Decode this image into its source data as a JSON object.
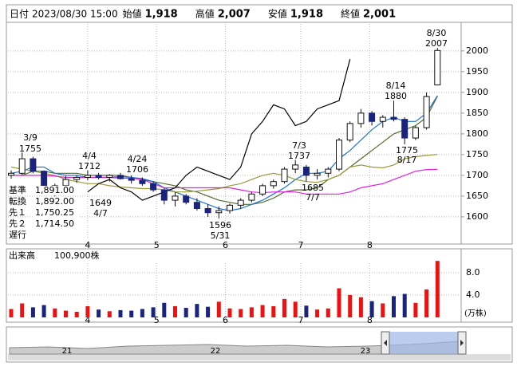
{
  "header": {
    "items": [
      {
        "label": "日付",
        "value": "2023/08/30 15:00"
      },
      {
        "label": "始値",
        "value": "1,918"
      },
      {
        "label": "高値",
        "value": "2,007"
      },
      {
        "label": "安値",
        "value": "1,918"
      },
      {
        "label": "終値",
        "value": "2,001"
      }
    ]
  },
  "chart_data": [
    {
      "type": "candlestick",
      "candles": [
        [
          1700,
          1712,
          1692,
          1705
        ],
        [
          1705,
          1755,
          1700,
          1740
        ],
        [
          1740,
          1745,
          1705,
          1710
        ],
        [
          1710,
          1712,
          1660,
          1670
        ],
        [
          1668,
          1680,
          1649,
          1675
        ],
        [
          1675,
          1698,
          1670,
          1690
        ],
        [
          1690,
          1700,
          1682,
          1695
        ],
        [
          1695,
          1712,
          1688,
          1700
        ],
        [
          1700,
          1706,
          1690,
          1695
        ],
        [
          1695,
          1703,
          1685,
          1700
        ],
        [
          1700,
          1706,
          1690,
          1692
        ],
        [
          1692,
          1700,
          1680,
          1688
        ],
        [
          1688,
          1695,
          1675,
          1680
        ],
        [
          1680,
          1685,
          1660,
          1665
        ],
        [
          1665,
          1670,
          1630,
          1640
        ],
        [
          1640,
          1660,
          1625,
          1650
        ],
        [
          1650,
          1655,
          1630,
          1635
        ],
        [
          1635,
          1645,
          1615,
          1620
        ],
        [
          1620,
          1630,
          1600,
          1610
        ],
        [
          1610,
          1625,
          1596,
          1615
        ],
        [
          1615,
          1632,
          1608,
          1628
        ],
        [
          1628,
          1645,
          1620,
          1640
        ],
        [
          1640,
          1660,
          1635,
          1655
        ],
        [
          1655,
          1680,
          1650,
          1675
        ],
        [
          1675,
          1690,
          1668,
          1685
        ],
        [
          1685,
          1720,
          1680,
          1715
        ],
        [
          1715,
          1737,
          1705,
          1725
        ],
        [
          1720,
          1725,
          1685,
          1700
        ],
        [
          1700,
          1715,
          1690,
          1705
        ],
        [
          1705,
          1720,
          1695,
          1715
        ],
        [
          1715,
          1790,
          1710,
          1785
        ],
        [
          1785,
          1830,
          1780,
          1825
        ],
        [
          1825,
          1860,
          1815,
          1850
        ],
        [
          1850,
          1855,
          1820,
          1830
        ],
        [
          1830,
          1845,
          1815,
          1840
        ],
        [
          1840,
          1880,
          1830,
          1835
        ],
        [
          1835,
          1840,
          1775,
          1790
        ],
        [
          1790,
          1820,
          1785,
          1815
        ],
        [
          1815,
          1900,
          1810,
          1890
        ],
        [
          1918,
          2007,
          1918,
          2001
        ]
      ],
      "up_color": "#ffffff",
      "down_color": "#1a237e",
      "series": [
        {
          "name": "基準",
          "color": "#4f6b2a",
          "value_label": "1,891.00",
          "values": [
            1700,
            1700,
            1710,
            1710,
            1705,
            1705,
            1705,
            1700,
            1700,
            1700,
            1700,
            1695,
            1690,
            1685,
            1680,
            1675,
            1665,
            1660,
            1650,
            1640,
            1635,
            1630,
            1630,
            1635,
            1645,
            1660,
            1665,
            1665,
            1670,
            1690,
            1700,
            1720,
            1740,
            1760,
            1780,
            1800,
            1810,
            1820,
            1840,
            1891
          ]
        },
        {
          "name": "転換",
          "color": "#1e73d2",
          "value_label": "1,892.00",
          "values": [
            1705,
            1710,
            1720,
            1720,
            1705,
            1700,
            1700,
            1695,
            1695,
            1695,
            1697,
            1695,
            1692,
            1685,
            1670,
            1660,
            1650,
            1640,
            1630,
            1620,
            1615,
            1620,
            1630,
            1640,
            1655,
            1670,
            1690,
            1705,
            1705,
            1710,
            1740,
            1760,
            1785,
            1810,
            1830,
            1840,
            1830,
            1830,
            1850,
            1892
          ]
        },
        {
          "name": "先１",
          "color": "#9a9a3a",
          "value_label": "1,750.25",
          "values": [
            1720,
            1715,
            1710,
            1705,
            1700,
            1690,
            1685,
            1680,
            1680,
            1675,
            1672,
            1670,
            1668,
            1668,
            1665,
            1660,
            1660,
            1662,
            1665,
            1668,
            1675,
            1680,
            1690,
            1700,
            1705,
            1700,
            1690,
            1685,
            1683,
            1690,
            1700,
            1720,
            1725,
            1720,
            1718,
            1725,
            1740,
            1745,
            1748,
            1750.25
          ]
        },
        {
          "name": "先２",
          "color": "#e020e0",
          "value_label": "1,714.50",
          "values": [
            1700,
            1700,
            1700,
            1700,
            1698,
            1695,
            1695,
            1695,
            1695,
            1695,
            1693,
            1693,
            1690,
            1680,
            1670,
            1670,
            1670,
            1670,
            1670,
            1670,
            1670,
            1665,
            1660,
            1658,
            1660,
            1660,
            1660,
            1655,
            1655,
            1655,
            1655,
            1660,
            1670,
            1675,
            1680,
            1690,
            1700,
            1710,
            1714,
            1714.5
          ]
        },
        {
          "name": "遅行",
          "color": "#000000",
          "values": [
            null,
            null,
            null,
            null,
            null,
            null,
            null,
            1660,
            1680,
            1690,
            1670,
            1660,
            1640,
            1650,
            1660,
            1670,
            1700,
            1720,
            1710,
            1700,
            1690,
            1720,
            1800,
            1830,
            1870,
            1860,
            1820,
            1830,
            1860,
            1870,
            1880,
            1980,
            null,
            null,
            null,
            null,
            null,
            null,
            null,
            null
          ]
        }
      ],
      "ylim": [
        1546,
        2065
      ],
      "yticks": [
        1600,
        1650,
        1700,
        1750,
        1800,
        1850,
        1900,
        1950,
        2000
      ],
      "xticks": [
        {
          "value": 7,
          "label": "4"
        },
        {
          "value": 13.3,
          "label": "5"
        },
        {
          "value": 19.6,
          "label": "6"
        },
        {
          "value": 26.5,
          "label": "7"
        },
        {
          "value": 32.8,
          "label": "8"
        }
      ],
      "grid": true,
      "annotations": [
        {
          "date": "3/9",
          "price": "1755"
        },
        {
          "date": "4/4",
          "price": "1712"
        },
        {
          "date": "4/24",
          "price": "1706"
        },
        {
          "date": "4/7",
          "price": "1649"
        },
        {
          "date": "5/31",
          "price": "1596"
        },
        {
          "date": "7/3",
          "price": "1737"
        },
        {
          "date": "7/7",
          "price": "1685"
        },
        {
          "date": "8/14",
          "price": "1880"
        },
        {
          "date": "8/17",
          "price": "1775"
        },
        {
          "date": "8/30",
          "price": "2007"
        }
      ]
    },
    {
      "type": "bar",
      "title": "出来高",
      "title_value": "100,900株",
      "unit": "(万株)",
      "values": [
        1.5,
        2.5,
        1.8,
        2.2,
        1.6,
        1.2,
        1.0,
        2.0,
        1.4,
        1.1,
        1.3,
        1.2,
        1.5,
        1.8,
        2.6,
        2.0,
        1.7,
        2.4,
        1.9,
        2.8,
        1.6,
        1.5,
        1.8,
        2.2,
        2.0,
        3.3,
        2.8,
        2.1,
        1.4,
        1.6,
        5.2,
        4.0,
        3.6,
        2.9,
        2.5,
        3.8,
        4.2,
        2.6,
        5.0,
        10.09
      ],
      "ylim": [
        0,
        11.4
      ],
      "yticks": [
        {
          "value": 4,
          "label": "4.0"
        },
        {
          "value": 8,
          "label": "8.0"
        }
      ],
      "grid": true
    }
  ],
  "navigator": {
    "labels": [
      "21",
      "22",
      "23"
    ]
  }
}
